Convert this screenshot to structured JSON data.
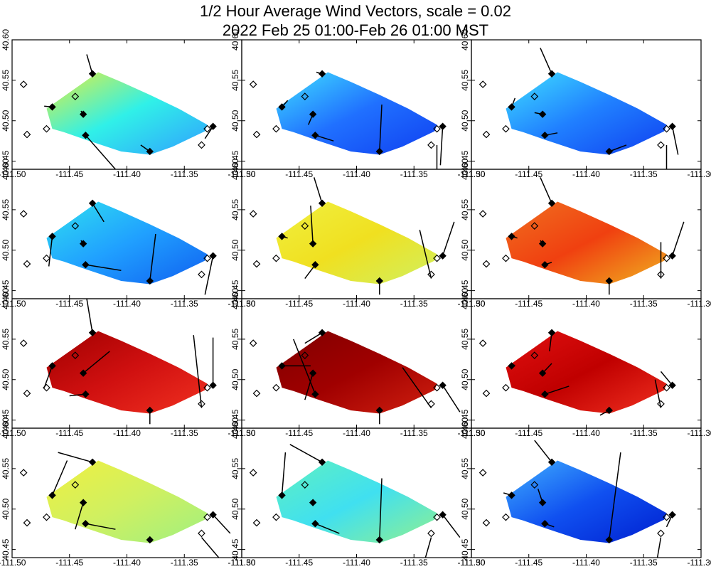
{
  "title": "1/2 Hour Average Wind Vectors, scale =  0.02",
  "subtitle": "2022 Feb 25 01:00-Feb 26 01:00 MST",
  "chart_data": {
    "type": "vector-field-panels",
    "rows": 4,
    "cols": 3,
    "xlim": [
      -111.5,
      -111.3
    ],
    "ylim": [
      40.44,
      40.6
    ],
    "xticks": [
      -111.5,
      -111.45,
      -111.4,
      -111.35,
      -111.3
    ],
    "xtick_labels": [
      "-111.50",
      "-111.45",
      "-111.40",
      "-111.35",
      "-111.30"
    ],
    "yticks": [
      40.45,
      40.5,
      40.55,
      40.6
    ],
    "ytick_labels": [
      "40.45",
      "40.50",
      "40.55",
      "40.60"
    ],
    "region_outline": [
      [
        -111.47,
        40.515
      ],
      [
        -111.44,
        40.545
      ],
      [
        -111.425,
        40.56
      ],
      [
        -111.405,
        40.548
      ],
      [
        -111.38,
        40.532
      ],
      [
        -111.355,
        40.515
      ],
      [
        -111.33,
        40.495
      ],
      [
        -111.332,
        40.487
      ],
      [
        -111.36,
        40.468
      ],
      [
        -111.38,
        40.458
      ],
      [
        -111.405,
        40.462
      ],
      [
        -111.435,
        40.476
      ],
      [
        -111.455,
        40.486
      ],
      [
        -111.465,
        40.49
      ]
    ],
    "stations_hollow": [
      [
        -111.49,
        40.545
      ],
      [
        -111.487,
        40.483
      ],
      [
        -111.47,
        40.49
      ],
      [
        -111.445,
        40.53
      ],
      [
        -111.335,
        40.47
      ],
      [
        -111.33,
        40.49
      ]
    ],
    "stations_filled": [
      [
        -111.465,
        40.517
      ],
      [
        -111.43,
        40.558
      ],
      [
        -111.438,
        40.508
      ],
      [
        -111.436,
        40.482
      ],
      [
        -111.38,
        40.462
      ],
      [
        -111.325,
        40.493
      ]
    ],
    "panels": [
      {
        "colors": [
          "#e8f03a",
          "#30f0e8",
          "#30a0ff"
        ],
        "vectors": [
          [
            -111.43,
            40.558,
            -111.435,
            40.582
          ],
          [
            -111.465,
            40.517,
            -111.472,
            40.518
          ],
          [
            -111.438,
            40.508,
            -111.44,
            40.512
          ],
          [
            -111.436,
            40.482,
            -111.41,
            40.44
          ],
          [
            -111.38,
            40.462,
            -111.388,
            40.47
          ],
          [
            -111.325,
            40.493,
            -111.332,
            40.478
          ]
        ]
      },
      {
        "colors": [
          "#40e0ff",
          "#2070ff",
          "#1040f0"
        ],
        "vectors": [
          [
            -111.43,
            40.558,
            -111.435,
            40.56
          ],
          [
            -111.465,
            40.517,
            -111.46,
            40.525
          ],
          [
            -111.438,
            40.508,
            -111.442,
            40.495
          ],
          [
            -111.436,
            40.482,
            -111.42,
            40.475
          ],
          [
            -111.38,
            40.462,
            -111.378,
            40.52
          ],
          [
            -111.325,
            40.493,
            -111.327,
            40.445
          ],
          [
            -111.33,
            40.47,
            -111.33,
            40.44
          ]
        ]
      },
      {
        "colors": [
          "#40e0ff",
          "#2080ff",
          "#1040f0"
        ],
        "vectors": [
          [
            -111.43,
            40.558,
            -111.44,
            40.59
          ],
          [
            -111.465,
            40.517,
            -111.462,
            40.528
          ],
          [
            -111.438,
            40.508,
            -111.445,
            40.51
          ],
          [
            -111.436,
            40.482,
            -111.425,
            40.485
          ],
          [
            -111.38,
            40.462,
            -111.365,
            40.47
          ],
          [
            -111.325,
            40.493,
            -111.32,
            40.458
          ],
          [
            -111.33,
            40.47,
            -111.33,
            40.44
          ]
        ]
      },
      {
        "colors": [
          "#30e0f0",
          "#20a0ff",
          "#1060f0"
        ],
        "vectors": [
          [
            -111.43,
            40.558,
            -111.42,
            40.535
          ],
          [
            -111.465,
            40.517,
            -111.468,
            40.48
          ],
          [
            -111.438,
            40.508,
            -111.44,
            40.512
          ],
          [
            -111.436,
            40.482,
            -111.405,
            40.475
          ],
          [
            -111.38,
            40.462,
            -111.375,
            40.52
          ],
          [
            -111.325,
            40.493,
            -111.332,
            40.445
          ]
        ]
      },
      {
        "colors": [
          "#f0f040",
          "#f0e020",
          "#d0f060"
        ],
        "vectors": [
          [
            -111.43,
            40.558,
            -111.437,
            40.59
          ],
          [
            -111.465,
            40.517,
            -111.46,
            40.515
          ],
          [
            -111.438,
            40.508,
            -111.44,
            40.555
          ],
          [
            -111.436,
            40.482,
            -111.445,
            40.465
          ],
          [
            -111.38,
            40.462,
            -111.38,
            40.445
          ],
          [
            -111.335,
            40.465,
            -111.345,
            40.525
          ],
          [
            -111.325,
            40.493,
            -111.315,
            40.535
          ]
        ]
      },
      {
        "colors": [
          "#f07020",
          "#f04010",
          "#f0b020"
        ],
        "vectors": [
          [
            -111.43,
            40.558,
            -111.44,
            40.59
          ],
          [
            -111.465,
            40.517,
            -111.46,
            40.515
          ],
          [
            -111.438,
            40.508,
            -111.44,
            40.512
          ],
          [
            -111.436,
            40.482,
            -111.43,
            40.485
          ],
          [
            -111.38,
            40.462,
            -111.38,
            40.445
          ],
          [
            -111.335,
            40.465,
            -111.335,
            40.51
          ],
          [
            -111.325,
            40.493,
            -111.315,
            40.535
          ]
        ]
      },
      {
        "colors": [
          "#a00000",
          "#d01010",
          "#f03020"
        ],
        "vectors": [
          [
            -111.43,
            40.558,
            -111.435,
            40.6
          ],
          [
            -111.465,
            40.517,
            -111.472,
            40.49
          ],
          [
            -111.438,
            40.508,
            -111.415,
            40.535
          ],
          [
            -111.436,
            40.482,
            -111.45,
            40.48
          ],
          [
            -111.38,
            40.462,
            -111.38,
            40.445
          ],
          [
            -111.335,
            40.465,
            -111.342,
            40.555
          ],
          [
            -111.325,
            40.493,
            -111.325,
            40.552
          ]
        ]
      },
      {
        "colors": [
          "#800000",
          "#a00000",
          "#d02010"
        ],
        "vectors": [
          [
            -111.43,
            40.558,
            -111.445,
            40.545
          ],
          [
            -111.465,
            40.517,
            -111.44,
            40.517
          ],
          [
            -111.438,
            40.508,
            -111.445,
            40.475
          ],
          [
            -111.436,
            40.482,
            -111.455,
            40.55
          ],
          [
            -111.38,
            40.462,
            -111.38,
            40.445
          ],
          [
            -111.335,
            40.465,
            -111.36,
            40.515
          ],
          [
            -111.325,
            40.493,
            -111.31,
            40.46
          ]
        ]
      },
      {
        "colors": [
          "#e01010",
          "#c00000",
          "#f03020"
        ],
        "vectors": [
          [
            -111.43,
            40.558,
            -111.432,
            40.535
          ],
          [
            -111.465,
            40.517,
            -111.462,
            40.518
          ],
          [
            -111.438,
            40.508,
            -111.43,
            40.52
          ],
          [
            -111.436,
            40.482,
            -111.415,
            40.492
          ],
          [
            -111.38,
            40.462,
            -111.388,
            40.456
          ],
          [
            -111.335,
            40.465,
            -111.34,
            40.5
          ],
          [
            -111.325,
            40.493,
            -111.335,
            40.51
          ]
        ]
      },
      {
        "colors": [
          "#f0f040",
          "#d0f060",
          "#a0f080"
        ],
        "vectors": [
          [
            -111.43,
            40.558,
            -111.46,
            40.57
          ],
          [
            -111.465,
            40.517,
            -111.452,
            40.56
          ],
          [
            -111.438,
            40.508,
            -111.445,
            40.475
          ],
          [
            -111.436,
            40.482,
            -111.41,
            40.475
          ],
          [
            -111.38,
            40.462,
            -111.378,
            40.46
          ],
          [
            -111.335,
            40.465,
            -111.32,
            40.44
          ],
          [
            -111.325,
            40.493,
            -111.31,
            40.47
          ]
        ]
      },
      {
        "colors": [
          "#60f0c0",
          "#40e0f0",
          "#90f090"
        ],
        "vectors": [
          [
            -111.43,
            40.558,
            -111.458,
            40.58
          ],
          [
            -111.465,
            40.517,
            -111.462,
            40.57
          ],
          [
            -111.438,
            40.508,
            -111.44,
            40.51
          ],
          [
            -111.436,
            40.482,
            -111.415,
            40.47
          ],
          [
            -111.38,
            40.462,
            -111.378,
            40.538
          ],
          [
            -111.335,
            40.465,
            -111.34,
            40.44
          ],
          [
            -111.325,
            40.493,
            -111.31,
            40.465
          ]
        ]
      },
      {
        "colors": [
          "#40b0ff",
          "#1050f0",
          "#0020d0"
        ],
        "vectors": [
          [
            -111.43,
            40.558,
            -111.445,
            40.585
          ],
          [
            -111.465,
            40.517,
            -111.472,
            40.52
          ],
          [
            -111.438,
            40.508,
            -111.442,
            40.525
          ],
          [
            -111.436,
            40.482,
            -111.428,
            40.478
          ],
          [
            -111.38,
            40.462,
            -111.37,
            40.57
          ],
          [
            -111.335,
            40.465,
            -111.338,
            40.44
          ],
          [
            -111.325,
            40.493,
            -111.33,
            40.478
          ]
        ]
      }
    ]
  }
}
